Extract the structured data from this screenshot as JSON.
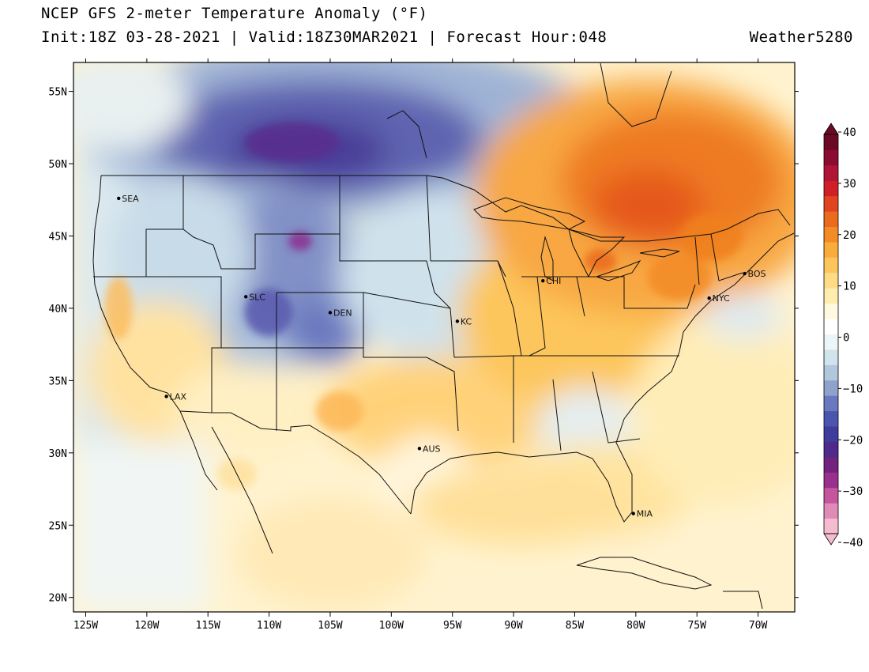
{
  "header": {
    "title": "NCEP GFS 2-meter Temperature Anomaly (°F)",
    "subtitle": "Init:18Z 03-28-2021 | Valid:18Z30MAR2021 | Forecast Hour:048",
    "brand": "Weather5280"
  },
  "map": {
    "lon_range": [
      -126,
      -67
    ],
    "lat_range": [
      19,
      57
    ],
    "lon_ticks": [
      {
        "value": -125,
        "label": "125W"
      },
      {
        "value": -120,
        "label": "120W"
      },
      {
        "value": -115,
        "label": "115W"
      },
      {
        "value": -110,
        "label": "110W"
      },
      {
        "value": -105,
        "label": "105W"
      },
      {
        "value": -100,
        "label": "100W"
      },
      {
        "value": -95,
        "label": "95W"
      },
      {
        "value": -90,
        "label": "90W"
      },
      {
        "value": -85,
        "label": "85W"
      },
      {
        "value": -80,
        "label": "80W"
      },
      {
        "value": -75,
        "label": "75W"
      },
      {
        "value": -70,
        "label": "70W"
      }
    ],
    "lat_ticks": [
      {
        "value": 55,
        "label": "55N"
      },
      {
        "value": 50,
        "label": "50N"
      },
      {
        "value": 45,
        "label": "45N"
      },
      {
        "value": 40,
        "label": "40N"
      },
      {
        "value": 35,
        "label": "35N"
      },
      {
        "value": 30,
        "label": "30N"
      },
      {
        "value": 25,
        "label": "25N"
      },
      {
        "value": 20,
        "label": "20N"
      }
    ],
    "cities": [
      {
        "name": "SEA",
        "lon": -122.3,
        "lat": 47.6
      },
      {
        "name": "SLC",
        "lon": -111.9,
        "lat": 40.8
      },
      {
        "name": "DEN",
        "lon": -105.0,
        "lat": 39.7
      },
      {
        "name": "KC",
        "lon": -94.6,
        "lat": 39.1
      },
      {
        "name": "CHI",
        "lon": -87.6,
        "lat": 41.9
      },
      {
        "name": "NYC",
        "lon": -74.0,
        "lat": 40.7
      },
      {
        "name": "BOS",
        "lon": -71.1,
        "lat": 42.4
      },
      {
        "name": "LAX",
        "lon": -118.4,
        "lat": 33.9
      },
      {
        "name": "AUS",
        "lon": -97.7,
        "lat": 30.3
      },
      {
        "name": "MIA",
        "lon": -80.2,
        "lat": 25.8
      }
    ]
  },
  "colorbar": {
    "labels": [
      "40",
      "30",
      "20",
      "10",
      "0",
      "−10",
      "−20",
      "−30",
      "−40"
    ],
    "min": -40,
    "max": 40,
    "colors": [
      "#f5bcd0",
      "#e08ab8",
      "#c4569e",
      "#9b2f8e",
      "#72237e",
      "#4e2a8a",
      "#3e3c9c",
      "#4b55ad",
      "#6a78bf",
      "#8ea2cc",
      "#b2c7dc",
      "#d1e3ec",
      "#ecf6f8",
      "#ffffff",
      "#fff9e0",
      "#ffedb0",
      "#ffdb86",
      "#fdc65c",
      "#f9ac3c",
      "#f38b27",
      "#ea6a1e",
      "#e0451f",
      "#cf2027",
      "#b01437",
      "#8c0c30",
      "#6b0a26"
    ]
  }
}
